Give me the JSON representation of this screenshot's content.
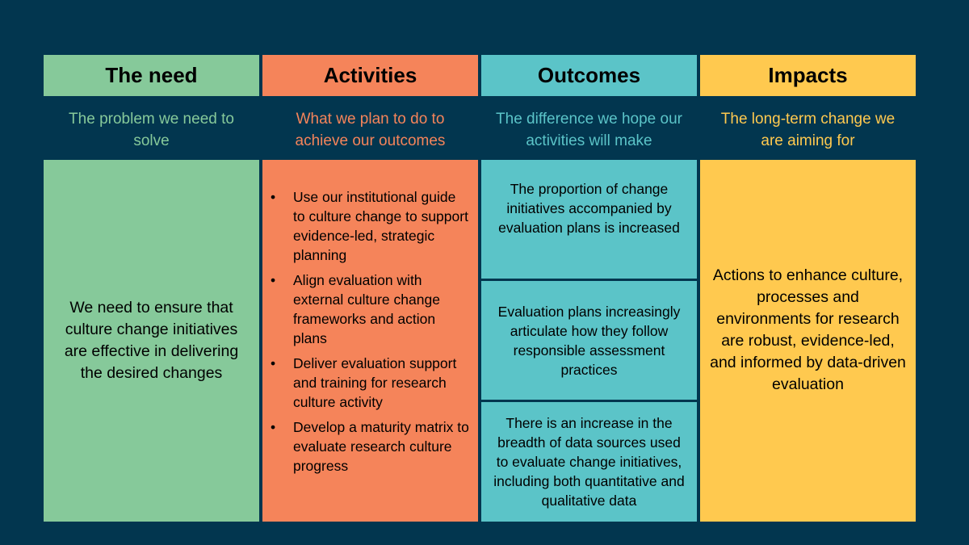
{
  "colors": {
    "background": "#02364f",
    "need": "#86c99a",
    "activities": "#f5845a",
    "outcomes": "#5bc4c8",
    "impacts": "#ffc94f"
  },
  "columns": [
    {
      "title": "The need",
      "subtitle": "The problem we need to solve",
      "body": "We need to ensure that culture change initiatives are effective in delivering the desired changes"
    },
    {
      "title": "Activities",
      "subtitle": "What we plan to do to achieve our outcomes",
      "items": [
        "Use our institutional guide to culture change to support evidence-led, strategic planning",
        "Align evaluation with external culture change frameworks and action plans",
        "Deliver evaluation support and training for research culture activity",
        "Develop a maturity matrix to evaluate research culture progress"
      ]
    },
    {
      "title": "Outcomes",
      "subtitle": "The difference we hope our activities will make",
      "items": [
        "The proportion of change initiatives accompanied by evaluation plans is increased",
        "Evaluation plans increasingly articulate how they follow responsible assessment practices",
        "There is an increase in the breadth of data sources used to evaluate change initiatives, including both quantitative and qualitative data"
      ]
    },
    {
      "title": "Impacts",
      "subtitle": "The long-term change we are aiming for",
      "body": "Actions to enhance culture, processes and environments for research are robust, evidence-led, and informed by data-driven evaluation"
    }
  ]
}
